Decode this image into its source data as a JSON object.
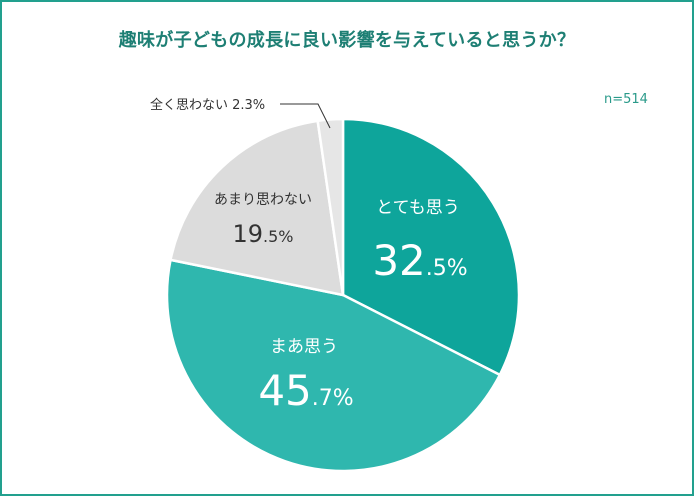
{
  "title": "趣味が子どもの成長に良い影響を与えていると思うか？",
  "n_label": "n=514",
  "colors": {
    "frame": "#22a08e",
    "slice_1": "#0ea59b",
    "slice_2": "#2fb7ae",
    "slice_3": "#dcdcdc",
    "slice_4": "#e6e6e6",
    "title": "#1e7f74",
    "title_highlight": "#fbe2a6"
  },
  "chart_data": {
    "type": "pie",
    "categories": [
      "とても思う",
      "まあ思う",
      "あまり思わない",
      "全く思わない"
    ],
    "values": [
      32.5,
      45.7,
      19.5,
      2.3
    ],
    "value_labels": {
      "s1_int": "32",
      "s1_dec": ".5%",
      "s2_int": "45",
      "s2_dec": ".7%",
      "s3_int": "19",
      "s3_dec": ".5%",
      "s4_full": "全く思わない 2.3%"
    },
    "start_angle_deg": 0,
    "direction": "clockwise",
    "colors": [
      "#0ea59b",
      "#2fb7ae",
      "#dcdcdc",
      "#e6e6e6"
    ]
  }
}
